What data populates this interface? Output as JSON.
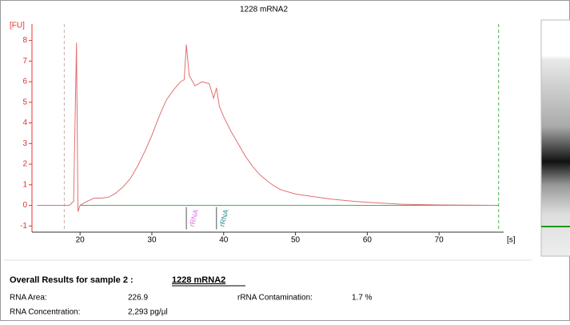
{
  "chart_data": {
    "type": "line",
    "title": "1228 mRNA2",
    "y_label": "[FU]",
    "x_label": "[s]",
    "x": [
      14,
      18.5,
      19.1,
      19.5,
      19.7,
      20,
      21,
      22,
      23,
      24,
      25,
      26,
      27,
      28,
      29,
      30,
      31,
      32,
      33,
      34,
      34.5,
      34.8,
      35.2,
      36,
      37,
      38,
      38.6,
      39,
      39.4,
      40,
      41,
      42,
      43,
      44,
      45,
      46,
      47,
      48,
      50,
      52,
      55,
      58,
      60,
      65,
      70,
      78
    ],
    "series": [
      {
        "name": "1228 mRNA2",
        "color": "#e07070",
        "values": [
          0,
          0,
          0.2,
          7.9,
          -0.3,
          0,
          0.2,
          0.35,
          0.35,
          0.4,
          0.6,
          0.9,
          1.3,
          1.9,
          2.6,
          3.4,
          4.3,
          5.1,
          5.6,
          6.0,
          6.1,
          7.8,
          6.3,
          5.8,
          6.0,
          5.9,
          5.2,
          5.7,
          4.8,
          4.3,
          3.6,
          3.0,
          2.4,
          1.9,
          1.5,
          1.2,
          0.95,
          0.75,
          0.55,
          0.45,
          0.3,
          0.2,
          0.15,
          0.05,
          0.02,
          0
        ]
      }
    ],
    "xlim": [
      13.3,
      79
    ],
    "ylim": [
      -1.3,
      8.8
    ],
    "xticks": [
      20,
      30,
      40,
      50,
      60,
      70
    ],
    "yticks": [
      -1,
      0,
      1,
      2,
      3,
      4,
      5,
      6,
      7,
      8
    ],
    "markers": [
      {
        "x": 17.8,
        "color": "#c8b0b0"
      },
      {
        "x": 78.3,
        "color": "#4caf50"
      }
    ],
    "annotations": [
      {
        "text": "rRNA",
        "x": 34.8,
        "color": "#e070e0"
      },
      {
        "text": "rRNA",
        "x": 39,
        "color": "#2a8a8a"
      }
    ]
  },
  "results": {
    "heading": "Overall Results for sample 2 :",
    "sample": "1228 mRNA2",
    "rows": [
      [
        "RNA Area:",
        "226.9",
        "rRNA Contamination:",
        "1.7 %"
      ],
      [
        "RNA Concentration:",
        "2,293 pg/µl"
      ]
    ]
  }
}
